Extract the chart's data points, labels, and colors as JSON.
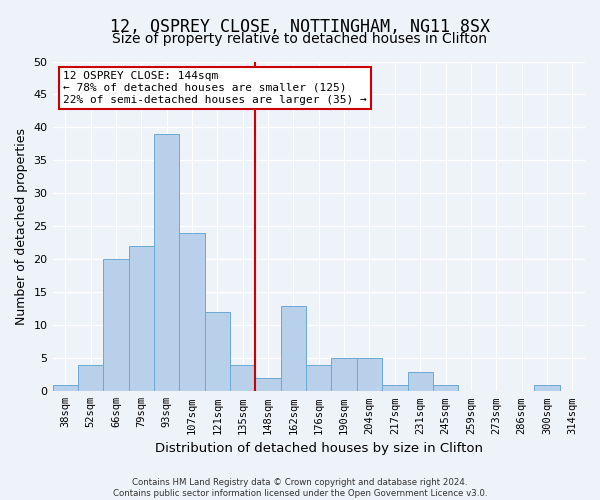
{
  "title": "12, OSPREY CLOSE, NOTTINGHAM, NG11 8SX",
  "subtitle": "Size of property relative to detached houses in Clifton",
  "xlabel": "Distribution of detached houses by size in Clifton",
  "ylabel": "Number of detached properties",
  "categories": [
    "38sqm",
    "52sqm",
    "66sqm",
    "79sqm",
    "93sqm",
    "107sqm",
    "121sqm",
    "135sqm",
    "148sqm",
    "162sqm",
    "176sqm",
    "190sqm",
    "204sqm",
    "217sqm",
    "231sqm",
    "245sqm",
    "259sqm",
    "273sqm",
    "286sqm",
    "300sqm",
    "314sqm"
  ],
  "values": [
    1,
    4,
    20,
    22,
    39,
    24,
    12,
    4,
    2,
    13,
    4,
    5,
    5,
    1,
    3,
    1,
    0,
    0,
    0,
    1,
    0
  ],
  "bar_color": "#b8d0ea",
  "bar_edge_color": "#6aaad4",
  "vline_x_index": 7.5,
  "vline_color": "#cc0000",
  "ylim": [
    0,
    50
  ],
  "yticks": [
    0,
    5,
    10,
    15,
    20,
    25,
    30,
    35,
    40,
    45,
    50
  ],
  "annotation_line1": "12 OSPREY CLOSE: 144sqm",
  "annotation_line2": "← 78% of detached houses are smaller (125)",
  "annotation_line3": "22% of semi-detached houses are larger (35) →",
  "annotation_box_color": "#ffffff",
  "annotation_edge_color": "#cc0000",
  "footer_line1": "Contains HM Land Registry data © Crown copyright and database right 2024.",
  "footer_line2": "Contains public sector information licensed under the Open Government Licence v3.0.",
  "background_color": "#eef2f9",
  "grid_color": "#ffffff",
  "title_fontsize": 12,
  "subtitle_fontsize": 10,
  "tick_fontsize": 7.5,
  "ylabel_fontsize": 9,
  "xlabel_fontsize": 9.5,
  "annotation_fontsize": 8
}
